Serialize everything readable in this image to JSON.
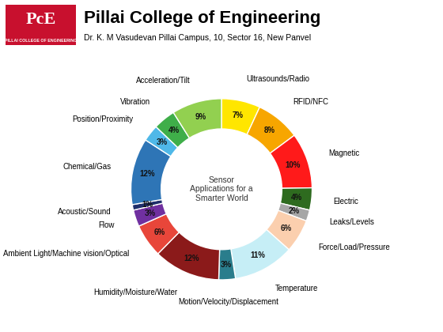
{
  "header": {
    "logo": "PcE",
    "logo_caption": "PILLAI COLLEGE OF ENGINEERING",
    "title": "Pillai College of Engineering",
    "subtitle": "Dr. K. M Vasudevan Pillai Campus, 10, Sector 16, New Panvel"
  },
  "chart_data": {
    "type": "donut",
    "center_text": "Sensor Applications for a Smarter World",
    "categories": [
      "Ultrasounds/Radio",
      "RFID/NFC",
      "Magnetic",
      "Electric",
      "Leaks/Levels",
      "Force/Load/Pressure",
      "Temperature",
      "Motion/Velocity/Displacement",
      "Humidity/Moisture/Water",
      "Ambient Light/Machine vision/Optical",
      "Flow",
      "Acoustic/Sound",
      "Chemical/Gas",
      "Position/Proximity",
      "Vibration",
      "Acceleration/Tilt"
    ],
    "values": [
      7,
      8,
      10,
      4,
      2,
      6,
      11,
      3,
      12,
      6,
      3,
      1,
      12,
      3,
      4,
      9
    ],
    "value_labels": [
      "7%",
      "8%",
      "10%",
      "4%",
      "2%",
      "6%",
      "11%",
      "3%",
      "12%",
      "6%",
      "3%",
      "1%",
      "12%",
      "3%",
      "4%",
      "9%"
    ],
    "colors": [
      "#ffe600",
      "#f7a600",
      "#ff1a1a",
      "#2e6b1f",
      "#a6a6a6",
      "#fbcfae",
      "#c6eef6",
      "#2a7d8c",
      "#8b1a1a",
      "#e8463a",
      "#7030a0",
      "#1f2f6b",
      "#2e75b6",
      "#4fb8e8",
      "#3fae49",
      "#92d050"
    ],
    "data_labels": true
  }
}
